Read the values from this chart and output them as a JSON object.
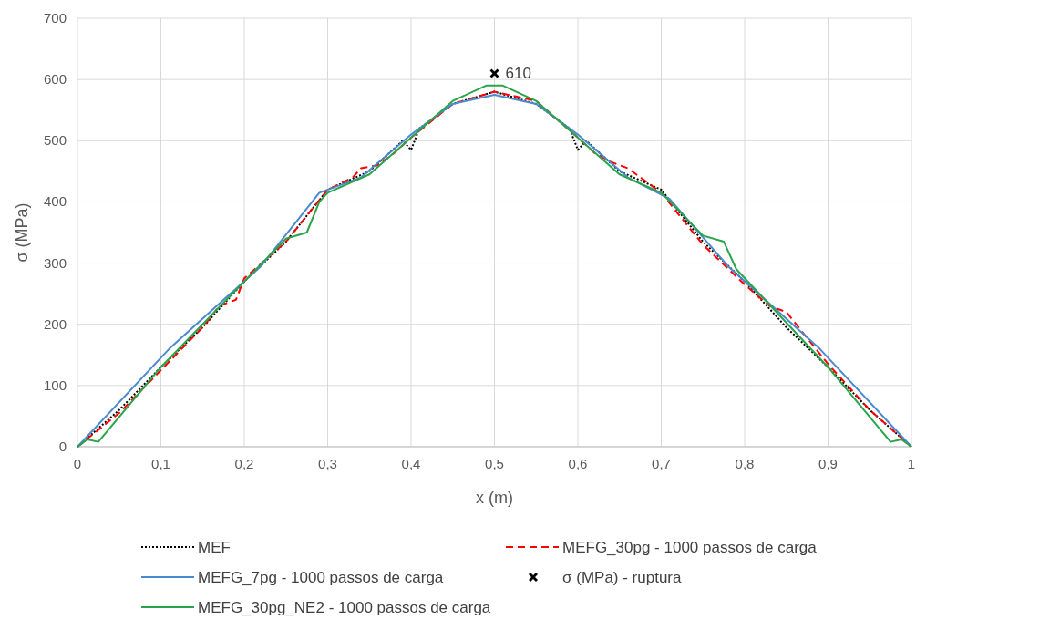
{
  "chart_data": {
    "type": "line",
    "xlabel": "x (m)",
    "ylabel": "σ (MPa)",
    "xlim": [
      0,
      1
    ],
    "ylim": [
      0,
      700
    ],
    "xticks": [
      0,
      {
        "value": 0.1,
        "label": "0,1"
      },
      {
        "value": 0.2,
        "label": "0,2"
      },
      {
        "value": 0.3,
        "label": "0,3"
      },
      {
        "value": 0.4,
        "label": "0,4"
      },
      {
        "value": 0.5,
        "label": "0,5"
      },
      {
        "value": 0.6,
        "label": "0,6"
      },
      {
        "value": 0.7,
        "label": "0,7"
      },
      {
        "value": 0.8,
        "label": "0,8"
      },
      {
        "value": 0.9,
        "label": "0,9"
      },
      1
    ],
    "yticks": [
      0,
      100,
      200,
      300,
      400,
      500,
      600,
      700
    ],
    "grid": true,
    "legend": "bottom",
    "series": [
      {
        "name": "MEF",
        "color": "#000000",
        "line_style": "dotted",
        "marker": "none",
        "x": [
          0,
          0.05,
          0.1,
          0.15,
          0.2,
          0.25,
          0.3,
          0.35,
          0.39,
          0.4,
          0.41,
          0.45,
          0.5,
          0.55,
          0.59,
          0.6,
          0.61,
          0.65,
          0.7,
          0.75,
          0.8,
          0.85,
          0.9,
          0.95,
          1
        ],
        "values": [
          0,
          60,
          130,
          195,
          270,
          335,
          420,
          450,
          500,
          485,
          520,
          560,
          580,
          560,
          520,
          485,
          500,
          450,
          420,
          335,
          270,
          195,
          130,
          60,
          0
        ]
      },
      {
        "name": "MEFG_30pg - 1000 passos de carga",
        "color": "#ff0000",
        "line_style": "dashed",
        "marker": "none",
        "x": [
          0,
          0.05,
          0.1,
          0.15,
          0.17,
          0.19,
          0.2,
          0.25,
          0.3,
          0.33,
          0.34,
          0.36,
          0.38,
          0.4,
          0.45,
          0.5,
          0.55,
          0.6,
          0.62,
          0.64,
          0.66,
          0.67,
          0.7,
          0.75,
          0.8,
          0.83,
          0.85,
          0.9,
          0.95,
          1
        ],
        "values": [
          0,
          55,
          125,
          195,
          230,
          240,
          275,
          335,
          420,
          440,
          455,
          460,
          480,
          505,
          560,
          580,
          565,
          505,
          480,
          465,
          455,
          445,
          415,
          330,
          265,
          230,
          220,
          135,
          60,
          0
        ]
      },
      {
        "name": "MEFG_7pg - 1000 passos de carga",
        "color": "#4a8ad0",
        "line_style": "solid",
        "marker": "none",
        "x": [
          0,
          0.11,
          0.22,
          0.29,
          0.34,
          0.4,
          0.45,
          0.5,
          0.55,
          0.6,
          0.66,
          0.71,
          0.78,
          0.89,
          1
        ],
        "values": [
          0,
          160,
          295,
          415,
          440,
          510,
          560,
          575,
          560,
          510,
          440,
          405,
          295,
          160,
          0
        ]
      },
      {
        "name": "σ (MPa) - ruptura",
        "type": "scatter",
        "color": "#000000",
        "marker": "cross",
        "x": [
          0.5
        ],
        "values": [
          610
        ],
        "value_labels": [
          "610"
        ]
      },
      {
        "name": "MEFG_30pg_NE2 - 1000 passos de carga",
        "color": "#2aa44a",
        "line_style": "solid",
        "marker": "none",
        "x": [
          0,
          0.012,
          0.025,
          0.1,
          0.15,
          0.25,
          0.275,
          0.29,
          0.3,
          0.35,
          0.45,
          0.49,
          0.51,
          0.55,
          0.65,
          0.7,
          0.75,
          0.775,
          0.79,
          0.9,
          0.975,
          0.988,
          1
        ],
        "values": [
          0,
          12,
          8,
          130,
          200,
          340,
          350,
          400,
          415,
          445,
          565,
          590,
          590,
          565,
          445,
          415,
          345,
          335,
          290,
          130,
          8,
          12,
          0
        ]
      }
    ]
  }
}
